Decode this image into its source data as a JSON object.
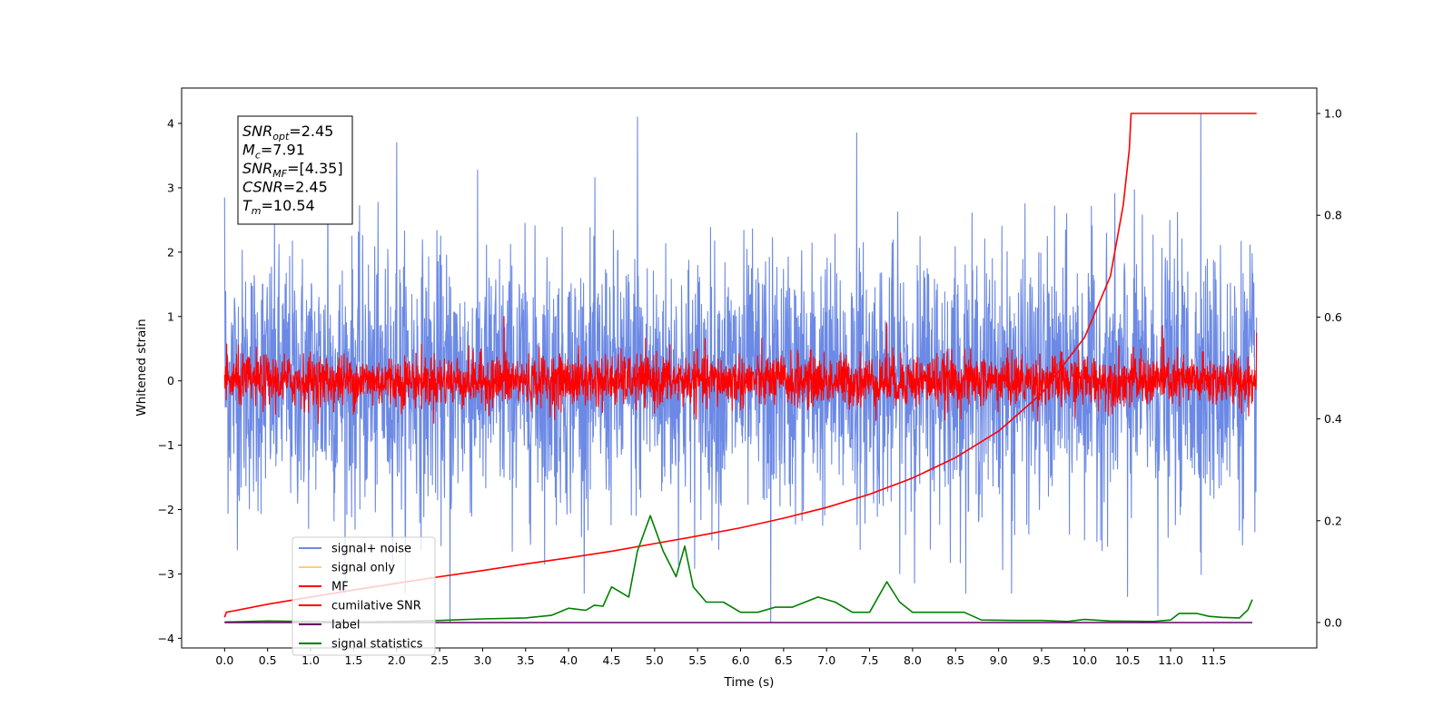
{
  "chart_data": {
    "type": "line",
    "xlabel": "Time (s)",
    "ylabel": "Whitened strain",
    "xlim": [
      -0.5,
      12.7
    ],
    "ylim": [
      -4.15,
      4.55
    ],
    "ylim_right": [
      -0.05,
      1.05
    ],
    "x_ticks": [
      0.0,
      0.5,
      1.0,
      1.5,
      2.0,
      2.5,
      3.0,
      3.5,
      4.0,
      4.5,
      5.0,
      5.5,
      6.0,
      6.5,
      7.0,
      7.5,
      8.0,
      8.5,
      9.0,
      9.5,
      10.0,
      10.5,
      11.0,
      11.5
    ],
    "x_tick_labels": [
      "0.0",
      "0.5",
      "1.0",
      "1.5",
      "2.0",
      "2.5",
      "3.0",
      "3.5",
      "4.0",
      "4.5",
      "5.0",
      "5.5",
      "6.0",
      "6.5",
      "7.0",
      "7.5",
      "8.0",
      "8.5",
      "9.0",
      "9.5",
      "10.0",
      "10.5",
      "11.0",
      "11.5"
    ],
    "y_ticks": [
      -4,
      -3,
      -2,
      -1,
      0,
      1,
      2,
      3,
      4
    ],
    "y_tick_labels": [
      "−4",
      "−3",
      "−2",
      "−1",
      "0",
      "1",
      "2",
      "3",
      "4"
    ],
    "y_right_ticks": [
      0.0,
      0.2,
      0.4,
      0.6,
      0.8,
      1.0
    ],
    "y_right_tick_labels": [
      "0.0",
      "0.2",
      "0.4",
      "0.6",
      "0.8",
      "1.0"
    ],
    "grid": false,
    "legend_position": "lower-left",
    "series": [
      {
        "name": "signal+ noise",
        "color": "#6b89e5",
        "axis": "left",
        "kind": "noise",
        "x_range": [
          0.0,
          12.0
        ],
        "amplitude_std": 1.0,
        "peaks": [
          {
            "x": 4.8,
            "y": 4.1
          },
          {
            "x": 11.35,
            "y": 4.15
          },
          {
            "x": 2.0,
            "y": 3.7
          },
          {
            "x": 7.35,
            "y": 3.85
          },
          {
            "x": 0.0,
            "y": 2.85
          },
          {
            "x": 1.2,
            "y": 3.6
          },
          {
            "x": 2.62,
            "y": -3.75
          },
          {
            "x": 6.35,
            "y": -3.75
          },
          {
            "x": 10.85,
            "y": -3.65
          },
          {
            "x": 10.5,
            "y": -3.35
          },
          {
            "x": 9.15,
            "y": -3.3
          }
        ]
      },
      {
        "name": "signal only",
        "color": "#ffcc80",
        "axis": "left",
        "kind": "hidden"
      },
      {
        "name": "MF",
        "color": "#ff0000",
        "axis": "left",
        "kind": "noise",
        "x_range": [
          0.0,
          12.0
        ],
        "amplitude_std": 0.2,
        "peaks": [
          {
            "x": 3.25,
            "y": 1.0
          },
          {
            "x": 7.7,
            "y": 0.9
          },
          {
            "x": 10.9,
            "y": 0.85
          },
          {
            "x": 12.0,
            "y": 0.75
          }
        ]
      },
      {
        "name": "cumilative SNR",
        "color": "#ff0000",
        "axis": "right",
        "kind": "line",
        "points": [
          [
            0.0,
            0.01
          ],
          [
            0.02,
            0.02
          ],
          [
            0.5,
            0.036
          ],
          [
            1.0,
            0.05
          ],
          [
            1.5,
            0.064
          ],
          [
            2.0,
            0.077
          ],
          [
            2.5,
            0.09
          ],
          [
            3.0,
            0.102
          ],
          [
            3.5,
            0.115
          ],
          [
            4.0,
            0.127
          ],
          [
            4.5,
            0.14
          ],
          [
            5.0,
            0.155
          ],
          [
            5.5,
            0.17
          ],
          [
            6.0,
            0.186
          ],
          [
            6.5,
            0.205
          ],
          [
            7.0,
            0.226
          ],
          [
            7.5,
            0.252
          ],
          [
            8.0,
            0.284
          ],
          [
            8.5,
            0.324
          ],
          [
            9.0,
            0.376
          ],
          [
            9.5,
            0.45
          ],
          [
            10.0,
            0.56
          ],
          [
            10.3,
            0.68
          ],
          [
            10.45,
            0.82
          ],
          [
            10.52,
            0.93
          ],
          [
            10.54,
            1.0
          ],
          [
            12.0,
            1.0
          ]
        ]
      },
      {
        "name": "label",
        "color": "#660066",
        "axis": "right",
        "kind": "line",
        "points": [
          [
            0.0,
            0.0
          ],
          [
            11.95,
            0.0
          ]
        ]
      },
      {
        "name": "signal statistics",
        "color": "#008000",
        "axis": "right",
        "kind": "line",
        "points": [
          [
            0.0,
            0.001
          ],
          [
            0.5,
            0.003
          ],
          [
            1.0,
            0.002
          ],
          [
            1.5,
            0.001
          ],
          [
            2.0,
            0.002
          ],
          [
            2.5,
            0.004
          ],
          [
            3.0,
            0.007
          ],
          [
            3.5,
            0.009
          ],
          [
            3.8,
            0.014
          ],
          [
            4.0,
            0.028
          ],
          [
            4.2,
            0.024
          ],
          [
            4.3,
            0.034
          ],
          [
            4.4,
            0.032
          ],
          [
            4.5,
            0.07
          ],
          [
            4.7,
            0.05
          ],
          [
            4.8,
            0.14
          ],
          [
            4.95,
            0.21
          ],
          [
            5.1,
            0.14
          ],
          [
            5.25,
            0.09
          ],
          [
            5.35,
            0.15
          ],
          [
            5.45,
            0.07
          ],
          [
            5.6,
            0.04
          ],
          [
            5.8,
            0.04
          ],
          [
            6.0,
            0.02
          ],
          [
            6.2,
            0.02
          ],
          [
            6.4,
            0.03
          ],
          [
            6.6,
            0.03
          ],
          [
            6.9,
            0.05
          ],
          [
            7.1,
            0.04
          ],
          [
            7.3,
            0.02
          ],
          [
            7.5,
            0.02
          ],
          [
            7.7,
            0.08
          ],
          [
            7.85,
            0.04
          ],
          [
            8.0,
            0.02
          ],
          [
            8.3,
            0.02
          ],
          [
            8.6,
            0.02
          ],
          [
            8.8,
            0.005
          ],
          [
            9.2,
            0.004
          ],
          [
            9.5,
            0.004
          ],
          [
            9.8,
            0.002
          ],
          [
            10.0,
            0.006
          ],
          [
            10.3,
            0.003
          ],
          [
            10.8,
            0.002
          ],
          [
            11.0,
            0.005
          ],
          [
            11.1,
            0.018
          ],
          [
            11.3,
            0.018
          ],
          [
            11.45,
            0.012
          ],
          [
            11.6,
            0.01
          ],
          [
            11.8,
            0.009
          ],
          [
            11.9,
            0.025
          ],
          [
            11.95,
            0.045
          ]
        ]
      }
    ],
    "annotation_box": {
      "lines": [
        {
          "base": "SNR",
          "sub": "opt",
          "value": "=2.45"
        },
        {
          "base": "M",
          "sub": "c",
          "value": "=7.91"
        },
        {
          "base": "SNR",
          "sub": "MF",
          "value": "=[4.35]"
        },
        {
          "base": "CSNR",
          "sub": "",
          "value": "=2.45"
        },
        {
          "base": "T",
          "sub": "m",
          "value": "=10.54"
        }
      ]
    }
  }
}
